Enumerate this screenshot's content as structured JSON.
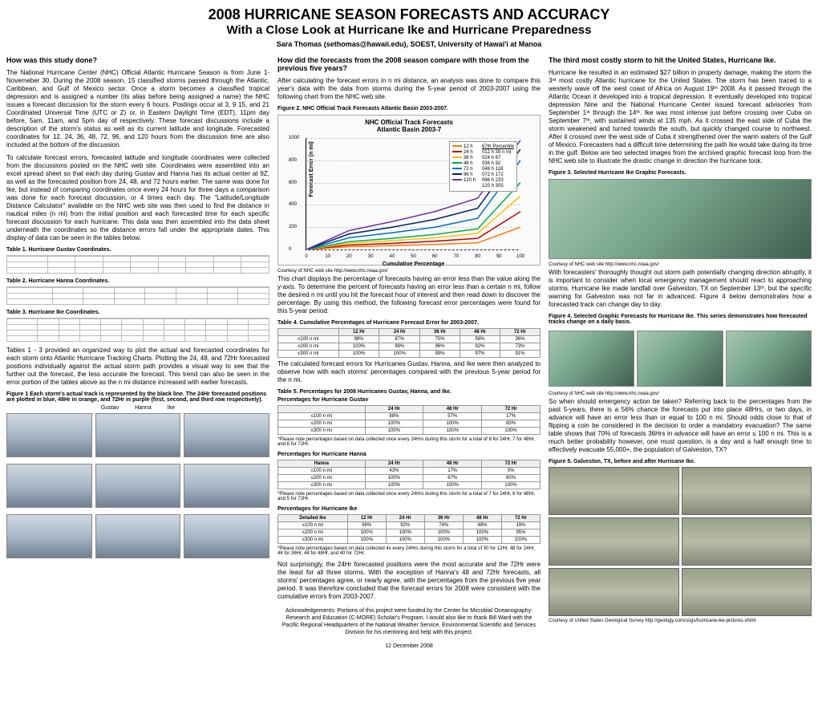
{
  "title": "2008 HURRICANE SEASON FORECASTS AND ACCURACY",
  "subtitle": "With a Close Look at Hurricane Ike and Hurricane Preparedness",
  "author": "Sara Thomas (sethomas@hawaii.edu), SOEST, University of Hawai'i at Manoa",
  "col1": {
    "h1": "How was this study done?",
    "p1": "The National Hurricane Center (NHC) Official Atlantic Hurricane Season is from June 1-Novemeber 30. During the 2008 season, 15 classified storms passed through the Atlantic, Caribbean, and Gulf of Mexico sector. Once a storm becomes a classified tropical depression and is assigned a number (its alias before being assigned a name) the NHC issues a forecast discussion for the storm every 6 hours. Postings occur at 3, 9 15, and 21 Coordinated Universal Time (UTC or Z) or, in Eastern Daylight Time (EDT), 11pm day before, 5am, 11am, and 5pm day of respectively. These forecast discussions include a description of the storm's status as well as its current latitude and longitude. Forecasted coordinates for 12, 24, 36, 48, 72, 96, and 120 hours from the discussion time are also included at the bottom of the discussion.",
    "p2": "To calculate forecast errors, forecasted latitude and longitude coordinates were collected from the discussions posted on the NHC web site. Coordinates were assembled into an excel spread sheet so that each day during Gustav and Hanna has its actual center at 9Z, as well as the forecasted position from 24, 48, and 72 hours earlier. The same was done for Ike, but instead of comparing coordinates once every 24 hours for three days a comparison was done for each forecast discussion, or 4 times each day. The \"Latitude/Longitude Distance Calculator\" available on the NHC web site was then used to find the distance in nautical miles (n mi) from the initial position and each forecasted time for each specific forecast discussion for each hurricane. This data was then assembled into the data sheet underneath the coordinates so the distance errors fall under the appropriate dates. This display of data can be seen in the tables below.",
    "t1cap": "Table 1. Hurricane Gustav Coordinates.",
    "t2cap": "Table 2. Hurricane Hanna Coordinates.",
    "t3cap": "Table 3. Hurricane Ike Coordinates.",
    "p3": "Tables 1 - 3 provided an organized way to plot the actual and forecasted coordinates for each storm onto Atlantic Hurricane Tracking Charts. Plotting the 24, 48, and 72Hr forecasted positions individually against the actual storm path provides a visual way to see that the further out the forecast, the less accurate the forecast. This trend can also be seen in the error portion of the tables above as the n mi distance increased with earlier forecasts.",
    "f1cap": "Figure 1 Each storm's actual track is represented by the black line. The 24Hr forecasted positions are plotted in blue, 48Hr in orange, and 72Hr in purple (first, second, and third row respectively).",
    "names": {
      "g": "Gustav",
      "h": "Hanna",
      "i": "Ike"
    }
  },
  "col2": {
    "h1": "How did the forecasts from the 2008 season compare with those from the previous five years?",
    "p1": "After calculating the forecast errors in n mi distance, an analysis was done to compare this year's data with the data from storms during the 5-year period of 2003-2007 using the following chart from the NHC web site.",
    "f2cap": "Figure 2. NHC Official Track Forecasts Atlantic Basin 2003-2007.",
    "chart": {
      "title1": "NHC Official Track Forecasts",
      "title2": "Atlantic Basin 2003-7",
      "ylabel": "Forecast Error (n mi)",
      "xlabel": "Cumulative Percentage",
      "ylim": [
        0,
        1000
      ],
      "ytick": 200,
      "xlim": [
        0,
        100
      ],
      "xtick": 10,
      "series": [
        {
          "label": "12 h",
          "color": "#ff7800",
          "pts": [
            [
              0,
              0
            ],
            [
              20,
              25
            ],
            [
              40,
              35
            ],
            [
              60,
              45
            ],
            [
              80,
              60
            ],
            [
              100,
              200
            ]
          ]
        },
        {
          "label": "24 h",
          "color": "#c00000",
          "pts": [
            [
              0,
              0
            ],
            [
              20,
              40
            ],
            [
              40,
              55
            ],
            [
              60,
              75
            ],
            [
              80,
              100
            ],
            [
              100,
              340
            ]
          ]
        },
        {
          "label": "36 h",
          "color": "#ffc000",
          "pts": [
            [
              0,
              0
            ],
            [
              20,
              55
            ],
            [
              40,
              80
            ],
            [
              60,
              105
            ],
            [
              80,
              145
            ],
            [
              100,
              480
            ]
          ]
        },
        {
          "label": "48 h",
          "color": "#00b050",
          "pts": [
            [
              0,
              0
            ],
            [
              20,
              70
            ],
            [
              40,
              100
            ],
            [
              60,
              135
            ],
            [
              80,
              185
            ],
            [
              100,
              600
            ]
          ]
        },
        {
          "label": "72 h",
          "color": "#0070c0",
          "pts": [
            [
              0,
              0
            ],
            [
              20,
              105
            ],
            [
              40,
              150
            ],
            [
              60,
              200
            ],
            [
              80,
              280
            ],
            [
              100,
              800
            ]
          ]
        },
        {
          "label": "96 h",
          "color": "#002060",
          "pts": [
            [
              0,
              0
            ],
            [
              20,
              140
            ],
            [
              40,
              200
            ],
            [
              60,
              270
            ],
            [
              80,
              370
            ],
            [
              100,
              900
            ]
          ]
        },
        {
          "label": "120 h",
          "color": "#7030a0",
          "pts": [
            [
              0,
              0
            ],
            [
              20,
              170
            ],
            [
              40,
              250
            ],
            [
              60,
              340
            ],
            [
              80,
              460
            ],
            [
              100,
              980
            ]
          ]
        }
      ],
      "pct_head": "67th Percentile",
      "pcts": [
        {
          "h": "012 h",
          "v": "39 n mi"
        },
        {
          "h": "024 h",
          "v": "67"
        },
        {
          "h": "036 h",
          "v": "92"
        },
        {
          "h": "048 h",
          "v": "118"
        },
        {
          "h": "072 h",
          "v": "172"
        },
        {
          "h": "096 h",
          "v": "233"
        },
        {
          "h": "120 h",
          "v": "305"
        }
      ]
    },
    "src1": "Courtesy of NHC web site http://www.nhc.noaa.gov/",
    "p2": "This chart displays the percentage of forecasts having an error less than the value along the y-axis. To determine the percent of forecasts having an error less than a certain n mi, follow the desired n mi until you hit the forecast hour of interest and then read down to discover the percentage. By using this method, the following forecast error percentages were found for this 5-year period:",
    "t4cap": "Table 4. Cumulative Percentages of Hurricane Forecast Error for 2003-2007.",
    "t4": {
      "cols": [
        "",
        "12 Hr",
        "24 Hr",
        "36 Hr",
        "48 Hr",
        "72 Hr"
      ],
      "rows": [
        [
          "≤100 n mi",
          "98%",
          "87%",
          "70%",
          "56%",
          "36%"
        ],
        [
          "≤200 n mi",
          "100%",
          "99%",
          "96%",
          "92%",
          "73%"
        ],
        [
          "≤300 n mi",
          "100%",
          "100%",
          "99%",
          "97%",
          "91%"
        ]
      ]
    },
    "p3": "The calculated forecast errors for Hurricanes Gustav, Hanna, and Ike were then analyzed to observe how with each storms' percentages compared with the previous 5-year period for the n mi.",
    "t5cap": "Table 5. Percentages for 2008 Hurricanes Gustav, Hanna, and Ike.",
    "t5a_head": "Percentages for Hurricane Gustav",
    "t5a": {
      "cols": [
        "",
        "24 Hr",
        "48 Hr",
        "72 Hr"
      ],
      "rows": [
        [
          "≤100 n mi",
          "88%",
          "57%",
          "17%"
        ],
        [
          "≤200 n mi",
          "100%",
          "100%",
          "83%"
        ],
        [
          "≤300 n mi",
          "100%",
          "100%",
          "100%"
        ]
      ]
    },
    "t5a_note": "*Please note percentages based on data collected once every 24Hrs during this storm for a total of 8 for 24Hr, 7 for 48Hr, and 6 for 72Hr.",
    "t5b_head": "Percentages for Hurricane Hanna",
    "t5b": {
      "cols": [
        "Hanna",
        "24 Hr",
        "48 Hr",
        "72 Hr"
      ],
      "rows": [
        [
          "≤100 n mi",
          "43%",
          "17%",
          "0%"
        ],
        [
          "≤200 n mi",
          "100%",
          "67%",
          "60%"
        ],
        [
          "≤300 n mi",
          "100%",
          "100%",
          "100%"
        ]
      ]
    },
    "t5b_note": "*Please note percentages based on data collected once every 24Hrs during this storm for a total of 7 for 24Hr, 6 for 48Hr, and 5 for 72Hr.",
    "t5c_head": "Percentages for Hurricane Ike",
    "t5c": {
      "cols": [
        "Detailed Ike",
        "12 Hr",
        "24 Hr",
        "36 Hr",
        "48 Hr",
        "72 Hr"
      ],
      "rows": [
        [
          "≤100 n mi",
          "96%",
          "92%",
          "74%",
          "48%",
          "19%"
        ],
        [
          "≤200 n mi",
          "100%",
          "100%",
          "100%",
          "100%",
          "95%"
        ],
        [
          "≤300 n mi",
          "100%",
          "100%",
          "100%",
          "100%",
          "100%"
        ]
      ]
    },
    "t5c_note": "*Please note percentages based on data collected 4x every 24Hrs during this storm for a total of 50 for 12Hr, 48 for 24Hr, 46 for 36Hr, 44 for 48Hr, and 40 for 72Hr.",
    "p4": "Not surprisingly, the 24Hr forecasted positions were the most accurate and the 72Hr were the least for all three storms. With the exception of Hanna's 48 and 72Hr forecasts, all storms' percentages agree, or nearly agree, with the percentages from the previous five year period. It was therefore concluded that the forecast errors for 2008 were consistent with the cumulative errors from 2003-2007.",
    "ack": "Acknowledgements: Portions of this project were funded by the Center for Microbial Oceanography: Research and Education (C-MORE) Scholar's Program. I would also like to thank Bill Ward with the Pacific Regional Headquarters of the National Weather Service, Environmental Scientific and Services Division for his mentoring and help with this project.",
    "date": "12 December 2008"
  },
  "col3": {
    "h1": "The third most costly storm to hit the United States, Hurricane Ike.",
    "p1": "Hurricane Ike resulted in an estimated $27 billion in property damage, making the storm the 3ʳᵈ most costly Atlantic hurricane for the United States. The storm has been traced to a westerly wave off the west coast of Africa on August 19ᵗʰ 2008. As it passed through the Atlantic Ocean it developed into a tropical depression. It eventually developed into tropical depression Nine and the National Hurricane Center issued forecast advisories from September 1ˢᵗ through the 14ᵗʰ. Ike was most intense just before crossing over Cuba on September 7ᵗʰ, with sustained winds at 135 mph. As it crossed the east side of Cuba the storm weakened and turned towards the south, but quickly changed course to northwest. After it crossed over the west side of Cuba it strengthened over the warm waters of the Gulf of Mexico. Forecasters had a difficult time determining the path Ike would take during its time in the gulf. Below are two selected images from the archived graphic forecast loop from the NHC web site to illustrate the drastic change in direction the hurricane took.",
    "f3cap": "Figure 3. Selected Hurricane Ike Graphic Forecasts.",
    "src1": "Courtesy of NHC web site http://www.nhc.noaa.gov/",
    "p2": "With forecasters' thoroughly thought out storm path potentially changing direction abruptly, it is important to consider when local emergency management should react to approaching storms. Hurricane Ike made landfall over Galveston, TX on September 13ᵗʰ, but the specific warning for Galveston was not far in advanced. Figure 4 below demonstrates how a forecasted track can change day to day.",
    "f4cap": "Figure 4. Selected Graphic Forecasts for Hurricane Ike. This series demonstrates how forecasted tracks change on a daily basis.",
    "src2": "Courtesy of NHC web site http://www.nhc.noaa.gov/",
    "p3": "So when should emergency action be taken? Referring back to the percentages from the past 5-years, there is a 56% chance the forecasts put into place 48Hrs, or two days, in advance will have an error less than or equal to 100 n mi. Should odds close to that of flipping a coin be considered in the decision to order a mandatory evacuation? The same table shows that 70% of forecasts 36Hrs in advance will have an error ≤ 100 n mi. This is a much better probability however, one must question, is a day and a half enough time to effectively evacuate 55,000+, the population of Galveston, TX?",
    "f5cap": "Figure 5. Galveston, TX, before and after Hurricane Ike.",
    "src3": "Courtesy of United States Geological Survey http://geology.com/usgs/hurricane-ike-pictures.shtml"
  }
}
